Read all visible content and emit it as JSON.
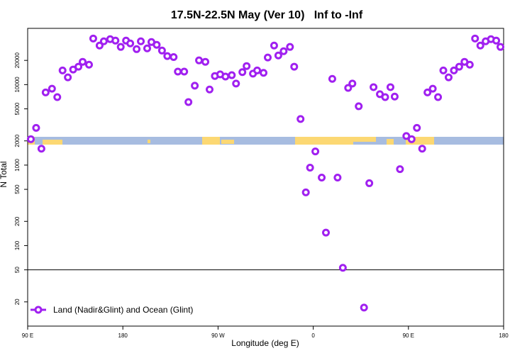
{
  "chart_data": {
    "type": "scatter",
    "title": "17.5N-22.5N May (Ver 10)   Inf to -Inf",
    "x_label": "Longitude (deg E)",
    "y_label": "N Total",
    "log_y": true,
    "xlim": [
      90,
      540
    ],
    "ylim": [
      10,
      50000
    ],
    "xticks": [
      {
        "value": 90,
        "label": "90 E"
      },
      180,
      {
        "value": 270,
        "label": "90 W"
      },
      {
        "value": 360,
        "label": "0"
      },
      {
        "value": 450,
        "label": "90 E"
      },
      {
        "value": 540,
        "label": "180"
      }
    ],
    "yticks": [
      20,
      50,
      100,
      200,
      500,
      1000,
      2000,
      5000,
      10000,
      20000
    ],
    "hline": 50,
    "legend_position": "bottom-left",
    "series": [
      {
        "name": "Land (Nadir&Glint) and Ocean (Glint)",
        "color": "#a020f0",
        "x": [
          93,
          98,
          103,
          107,
          113,
          118,
          123,
          128,
          133,
          138,
          142,
          148,
          152,
          158,
          162,
          168,
          173,
          178,
          183,
          187,
          193,
          197,
          203,
          207,
          212,
          217,
          222,
          228,
          232,
          238,
          242,
          248,
          252,
          258,
          262,
          267,
          272,
          277,
          283,
          287,
          293,
          297,
          303,
          307,
          313,
          317,
          323,
          327,
          332,
          338,
          342,
          348,
          353,
          357,
          362,
          368,
          372,
          378,
          383,
          388,
          393,
          397,
          403,
          408,
          413,
          417,
          423,
          428,
          433,
          437,
          442,
          448,
          453,
          458,
          463,
          468,
          473,
          478,
          483,
          488,
          493,
          498,
          503,
          508,
          513,
          518,
          523,
          528,
          533,
          537
        ],
        "values": [
          2100,
          2900,
          1600,
          8000,
          8900,
          7000,
          15000,
          12300,
          15400,
          16700,
          19200,
          17700,
          37400,
          30600,
          34500,
          36700,
          35200,
          29400,
          35200,
          32500,
          27600,
          34500,
          28200,
          33800,
          31200,
          26500,
          22600,
          22000,
          14500,
          14500,
          6070,
          9700,
          20000,
          19200,
          8700,
          12800,
          13400,
          12600,
          13100,
          10300,
          14300,
          17000,
          13700,
          15000,
          14000,
          21700,
          30600,
          23000,
          26000,
          29400,
          16700,
          3740,
          458,
          930,
          1480,
          700,
          145,
          11800,
          700,
          53,
          9100,
          10300,
          5380,
          17,
          596,
          9300,
          7600,
          7000,
          9300,
          7100,
          890,
          2300,
          2100,
          2900,
          1600,
          8000,
          8900,
          7000,
          15000,
          12300,
          15000,
          16700,
          19200,
          17700,
          37400,
          30600,
          34500,
          36700,
          35200,
          29400
        ]
      }
    ]
  }
}
